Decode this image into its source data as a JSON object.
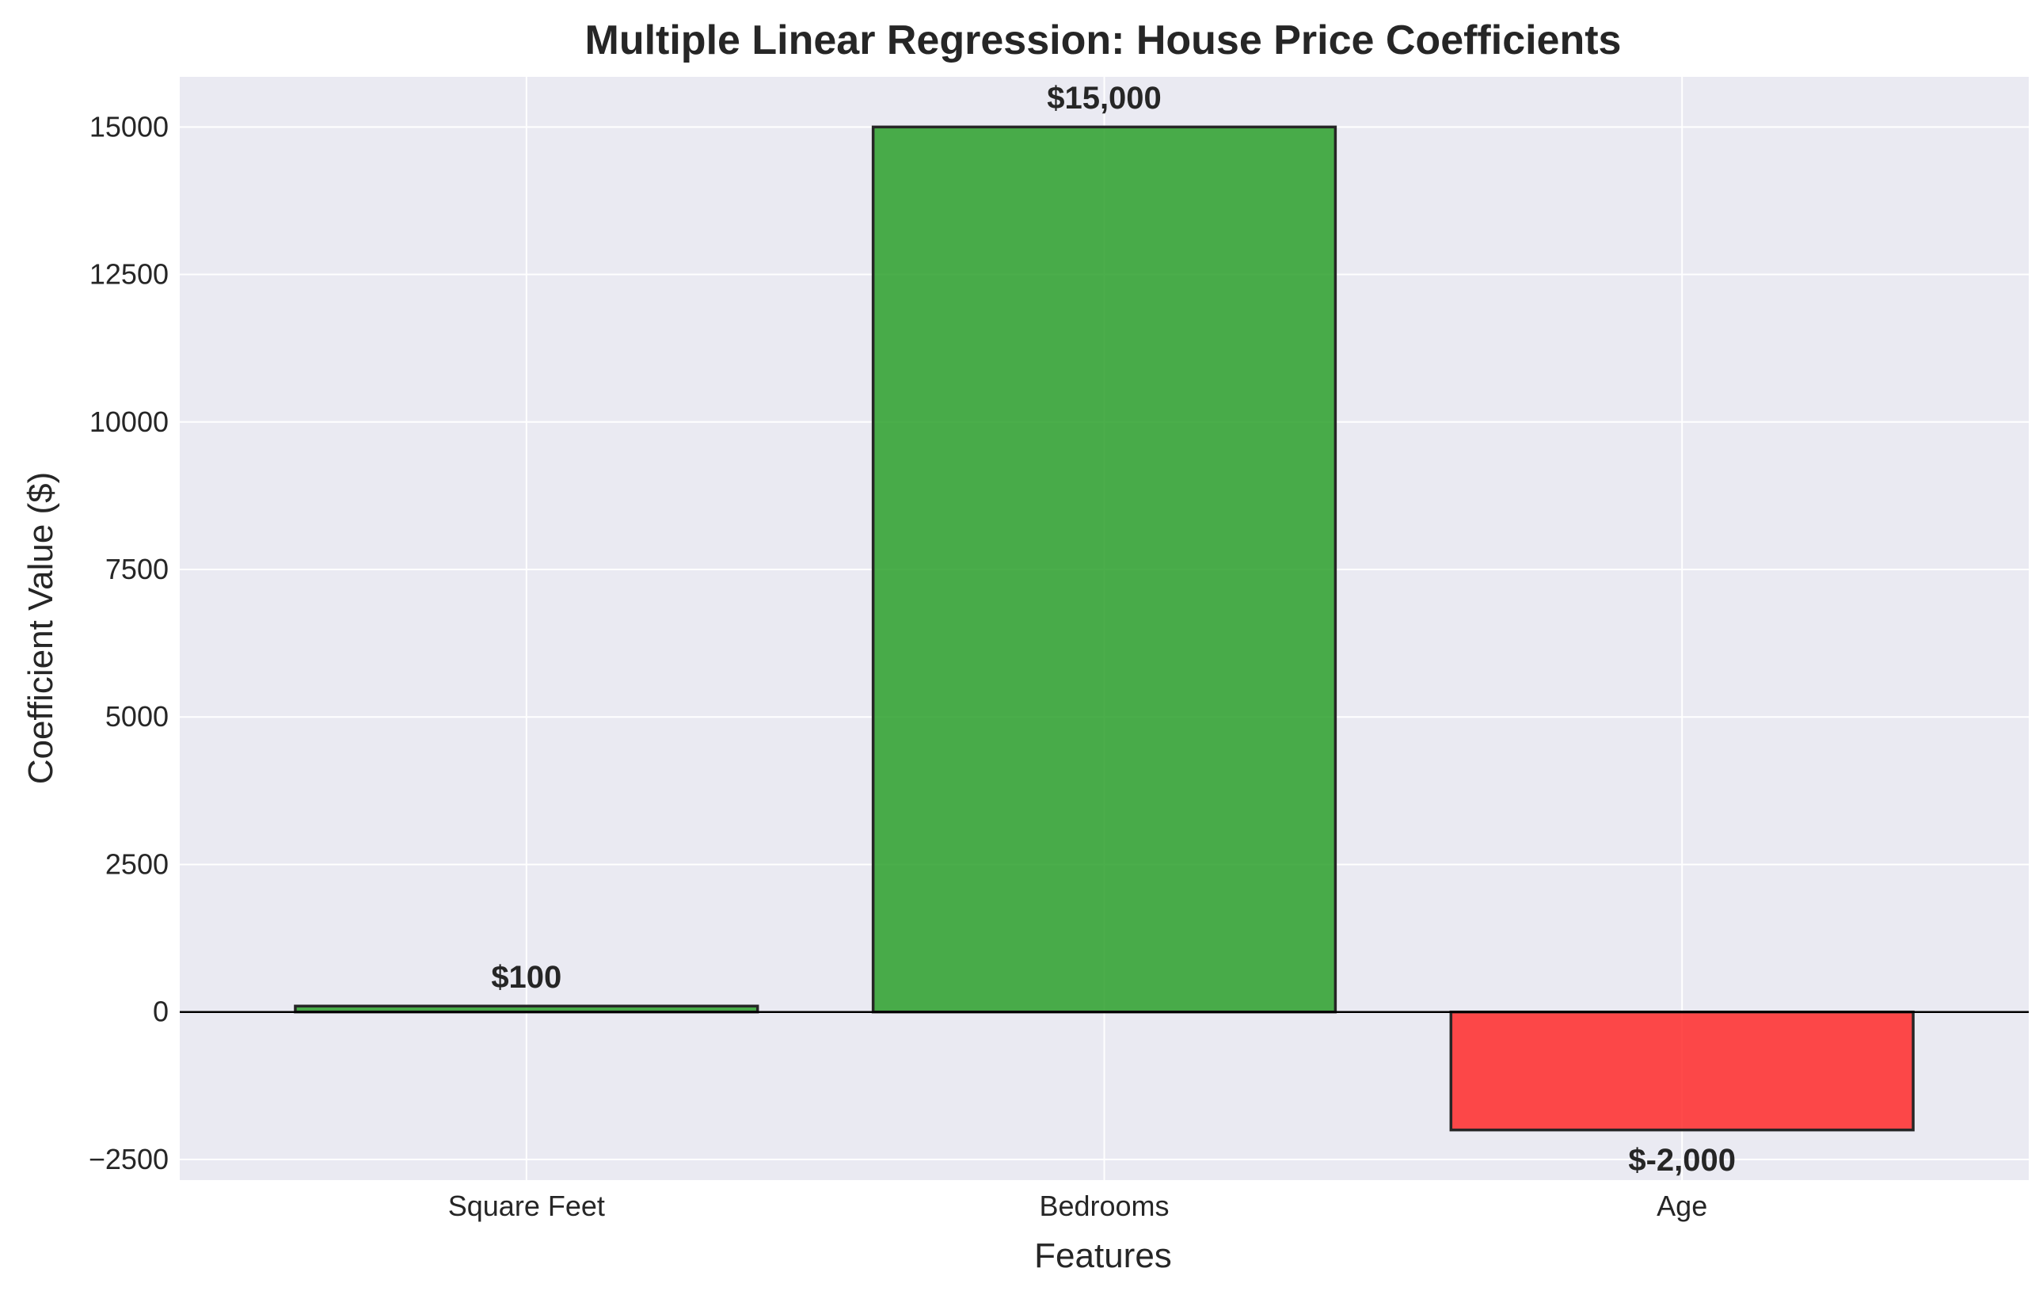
{
  "chart_data": {
    "type": "bar",
    "title": "Multiple Linear Regression: House Price Coefficients",
    "xlabel": "Features",
    "ylabel": "Coefficient Value ($)",
    "categories": [
      "Square Feet",
      "Bedrooms",
      "Age"
    ],
    "values": [
      100,
      15000,
      -2000
    ],
    "data_labels": [
      "$100",
      "$15,000",
      "$-2,000"
    ],
    "ylim": [
      -2850,
      15850
    ],
    "yticks": [
      -2500,
      0,
      2500,
      5000,
      7500,
      10000,
      12500,
      15000
    ],
    "ytick_labels": [
      "−2500",
      "0",
      "2500",
      "5000",
      "7500",
      "10000",
      "12500",
      "15000"
    ],
    "grid": true,
    "zero_line": true,
    "colors": {
      "positive": "#2ca02c",
      "negative": "#ff2a2a",
      "edge": "#262626",
      "plot_background": "#eaeaf2",
      "grid": "#ffffff"
    }
  }
}
